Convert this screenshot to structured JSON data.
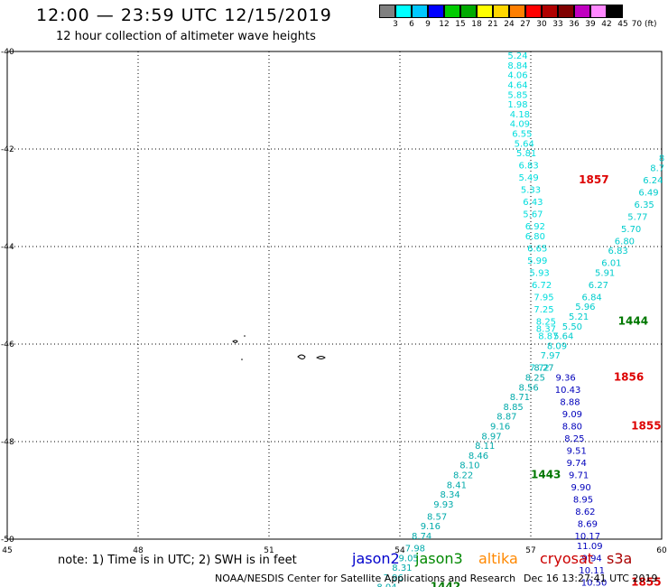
{
  "header": {
    "title": "12:00 — 23:59 UTC 12/15/2019",
    "subtitle": "12 hour collection of altimeter wave heights"
  },
  "legend": {
    "colors": [
      "#808080",
      "#00ffff",
      "#00c8ff",
      "#0000ff",
      "#00cc00",
      "#00aa00",
      "#ffff00",
      "#ffd700",
      "#ff7f00",
      "#ff0000",
      "#b00000",
      "#800000",
      "#c000c0",
      "#ff88ff",
      "#000000"
    ],
    "labels": [
      "3",
      "6",
      "9",
      "12",
      "15",
      "18",
      "21",
      "24",
      "27",
      "30",
      "33",
      "36",
      "39",
      "42",
      "45",
      "70 (ft)"
    ]
  },
  "axes": {
    "lon_labels": [
      "45",
      "48",
      "51",
      "54",
      "57",
      "60"
    ],
    "lat_labels": [
      "-40",
      "-42",
      "-44",
      "-46",
      "-48",
      "-50"
    ],
    "lon_range": [
      45,
      60
    ],
    "lat_range": [
      -40,
      -50
    ]
  },
  "tracks": {
    "track1": {
      "color": "#00dddd",
      "points": [
        {
          "lon": 56.7,
          "lat": -40.15,
          "v": "5.24"
        },
        {
          "lon": 56.7,
          "lat": -40.35,
          "v": "8.84"
        },
        {
          "lon": 56.7,
          "lat": -40.55,
          "v": "4.06"
        },
        {
          "lon": 56.7,
          "lat": -40.75,
          "v": "4.64"
        },
        {
          "lon": 56.7,
          "lat": -40.95,
          "v": "5.85"
        },
        {
          "lon": 56.7,
          "lat": -41.15,
          "v": "1.98"
        },
        {
          "lon": 56.75,
          "lat": -41.35,
          "v": "4.18"
        },
        {
          "lon": 56.75,
          "lat": -41.55,
          "v": "4.09"
        },
        {
          "lon": 56.8,
          "lat": -41.75,
          "v": "6.55"
        },
        {
          "lon": 56.85,
          "lat": -41.95,
          "v": "5.64"
        },
        {
          "lon": 56.9,
          "lat": -42.15,
          "v": "5.81"
        },
        {
          "lon": 56.95,
          "lat": -42.4,
          "v": "6.83"
        },
        {
          "lon": 56.95,
          "lat": -42.65,
          "v": "5.49"
        },
        {
          "lon": 57.0,
          "lat": -42.9,
          "v": "5.33"
        },
        {
          "lon": 57.05,
          "lat": -43.15,
          "v": "6.43"
        },
        {
          "lon": 57.05,
          "lat": -43.4,
          "v": "5.67"
        },
        {
          "lon": 57.1,
          "lat": -43.65,
          "v": "6.92"
        },
        {
          "lon": 57.1,
          "lat": -43.85,
          "v": "6.80"
        },
        {
          "lon": 57.15,
          "lat": -44.1,
          "v": "6.65"
        },
        {
          "lon": 57.15,
          "lat": -44.35,
          "v": "5.99"
        },
        {
          "lon": 57.2,
          "lat": -44.6,
          "v": "5.93"
        },
        {
          "lon": 57.25,
          "lat": -44.85,
          "v": "6.72"
        },
        {
          "lon": 57.3,
          "lat": -45.1,
          "v": "7.95"
        },
        {
          "lon": 57.3,
          "lat": -45.35,
          "v": "7.25"
        },
        {
          "lon": 57.35,
          "lat": -45.6,
          "v": "8.25"
        },
        {
          "lon": 57.35,
          "lat": -45.75,
          "v": "8.37"
        },
        {
          "lon": 57.4,
          "lat": -45.9,
          "v": "8.87"
        }
      ],
      "label": {
        "text": "1857",
        "color": "#dd0000",
        "lon": 58.1,
        "lat": -42.7
      }
    },
    "track2": {
      "color": "#00cccc",
      "points": [
        {
          "lon": 60.0,
          "lat": -42.25,
          "v": "8"
        },
        {
          "lon": 59.9,
          "lat": -42.45,
          "v": "8.7"
        },
        {
          "lon": 59.8,
          "lat": -42.7,
          "v": "6.24"
        },
        {
          "lon": 59.7,
          "lat": -42.95,
          "v": "6.49"
        },
        {
          "lon": 59.6,
          "lat": -43.2,
          "v": "6.35"
        },
        {
          "lon": 59.45,
          "lat": -43.45,
          "v": "5.77"
        },
        {
          "lon": 59.3,
          "lat": -43.7,
          "v": "5.70"
        },
        {
          "lon": 59.15,
          "lat": -43.95,
          "v": "6.80"
        },
        {
          "lon": 59.0,
          "lat": -44.15,
          "v": "6.83"
        },
        {
          "lon": 58.85,
          "lat": -44.4,
          "v": "6.01"
        },
        {
          "lon": 58.7,
          "lat": -44.6,
          "v": "5.91"
        },
        {
          "lon": 58.55,
          "lat": -44.85,
          "v": "6.27"
        },
        {
          "lon": 58.4,
          "lat": -45.1,
          "v": "6.84"
        },
        {
          "lon": 58.25,
          "lat": -45.3,
          "v": "5.96"
        },
        {
          "lon": 58.1,
          "lat": -45.5,
          "v": "5.21"
        },
        {
          "lon": 57.95,
          "lat": -45.7,
          "v": "5.50"
        },
        {
          "lon": 57.75,
          "lat": -45.9,
          "v": "5.64"
        },
        {
          "lon": 57.6,
          "lat": -46.1,
          "v": "8.09"
        },
        {
          "lon": 57.45,
          "lat": -46.3,
          "v": "7.97"
        },
        {
          "lon": 57.2,
          "lat": -46.55,
          "v": "7.72"
        }
      ],
      "label": {
        "text": "1444",
        "color": "#007700",
        "lon": 59.0,
        "lat": -45.6
      }
    },
    "track3": {
      "color": "#0000bb",
      "points": [
        {
          "lon": 57.8,
          "lat": -46.75,
          "v": "9.36"
        },
        {
          "lon": 57.85,
          "lat": -47.0,
          "v": "10.43"
        },
        {
          "lon": 57.9,
          "lat": -47.25,
          "v": "8.88"
        },
        {
          "lon": 57.95,
          "lat": -47.5,
          "v": "9.09"
        },
        {
          "lon": 57.95,
          "lat": -47.75,
          "v": "8.80"
        },
        {
          "lon": 58.0,
          "lat": -48.0,
          "v": "8.25"
        },
        {
          "lon": 58.05,
          "lat": -48.25,
          "v": "9.51"
        },
        {
          "lon": 58.05,
          "lat": -48.5,
          "v": "9.74"
        },
        {
          "lon": 58.1,
          "lat": -48.75,
          "v": "9.71"
        },
        {
          "lon": 58.15,
          "lat": -49.0,
          "v": "9.90"
        },
        {
          "lon": 58.2,
          "lat": -49.25,
          "v": "8.95"
        },
        {
          "lon": 58.25,
          "lat": -49.5,
          "v": "8.62"
        },
        {
          "lon": 58.3,
          "lat": -49.75,
          "v": "8.69"
        },
        {
          "lon": 58.3,
          "lat": -50.0,
          "v": "10.17"
        },
        {
          "lon": 58.35,
          "lat": -50.2,
          "v": "11.09"
        },
        {
          "lon": 58.4,
          "lat": -50.45,
          "v": "9.94"
        },
        {
          "lon": 58.4,
          "lat": -50.7,
          "v": "10.11"
        },
        {
          "lon": 58.45,
          "lat": -50.95,
          "v": "10.50"
        }
      ],
      "labels": [
        {
          "text": "1856",
          "color": "#dd0000",
          "lon": 58.9,
          "lat": -46.75
        },
        {
          "text": "1855",
          "color": "#dd0000",
          "lon": 59.3,
          "lat": -47.75
        },
        {
          "text": "1855",
          "color": "#dd0000",
          "lon": 59.3,
          "lat": -50.95
        }
      ]
    },
    "track4": {
      "color": "#00aaaa",
      "points": [
        {
          "lon": 57.3,
          "lat": -46.55,
          "v": "8.27"
        },
        {
          "lon": 57.1,
          "lat": -46.75,
          "v": "8.25"
        },
        {
          "lon": 56.95,
          "lat": -46.95,
          "v": "8.56"
        },
        {
          "lon": 56.75,
          "lat": -47.15,
          "v": "8.71"
        },
        {
          "lon": 56.6,
          "lat": -47.35,
          "v": "8.85"
        },
        {
          "lon": 56.45,
          "lat": -47.55,
          "v": "8.87"
        },
        {
          "lon": 56.3,
          "lat": -47.75,
          "v": "9.16"
        },
        {
          "lon": 56.1,
          "lat": -47.95,
          "v": "8.97"
        },
        {
          "lon": 55.95,
          "lat": -48.15,
          "v": "8.11"
        },
        {
          "lon": 55.8,
          "lat": -48.35,
          "v": "8.46"
        },
        {
          "lon": 55.6,
          "lat": -48.55,
          "v": "8.10"
        },
        {
          "lon": 55.45,
          "lat": -48.75,
          "v": "8.22"
        },
        {
          "lon": 55.3,
          "lat": -48.95,
          "v": "8.41"
        },
        {
          "lon": 55.15,
          "lat": -49.15,
          "v": "8.34"
        },
        {
          "lon": 55.0,
          "lat": -49.35,
          "v": "9.93"
        },
        {
          "lon": 54.85,
          "lat": -49.6,
          "v": "8.57"
        },
        {
          "lon": 54.7,
          "lat": -49.8,
          "v": "9.16"
        },
        {
          "lon": 54.5,
          "lat": -50.0,
          "v": "8.74"
        },
        {
          "lon": 54.35,
          "lat": -50.25,
          "v": "7.98"
        },
        {
          "lon": 54.2,
          "lat": -50.45,
          "v": "9.05"
        },
        {
          "lon": 54.05,
          "lat": -50.65,
          "v": "8.31"
        },
        {
          "lon": 53.85,
          "lat": -50.85,
          "v": "7.96"
        },
        {
          "lon": 53.7,
          "lat": -51.05,
          "v": "8.04"
        }
      ],
      "labels": [
        {
          "text": "1443",
          "color": "#007700",
          "lon": 57.0,
          "lat": -48.75
        },
        {
          "text": "1442",
          "color": "#007700",
          "lon": 54.7,
          "lat": -51.05
        }
      ]
    }
  },
  "note": "note: 1) Time is in UTC; 2) SWH is in feet",
  "satellites": [
    {
      "name": "jason2",
      "color": "#0000cc"
    },
    {
      "name": "jason3",
      "color": "#008800"
    },
    {
      "name": "altika",
      "color": "#ff8800"
    },
    {
      "name": "cryosat",
      "color": "#cc0000"
    },
    {
      "name": "s3a",
      "color": "#aa0000"
    }
  ],
  "footer": {
    "agency": "NOAA/NESDIS Center for Satellite Applications and Research",
    "timestamp": "Dec 16 13:27:41 UTC 2019"
  }
}
